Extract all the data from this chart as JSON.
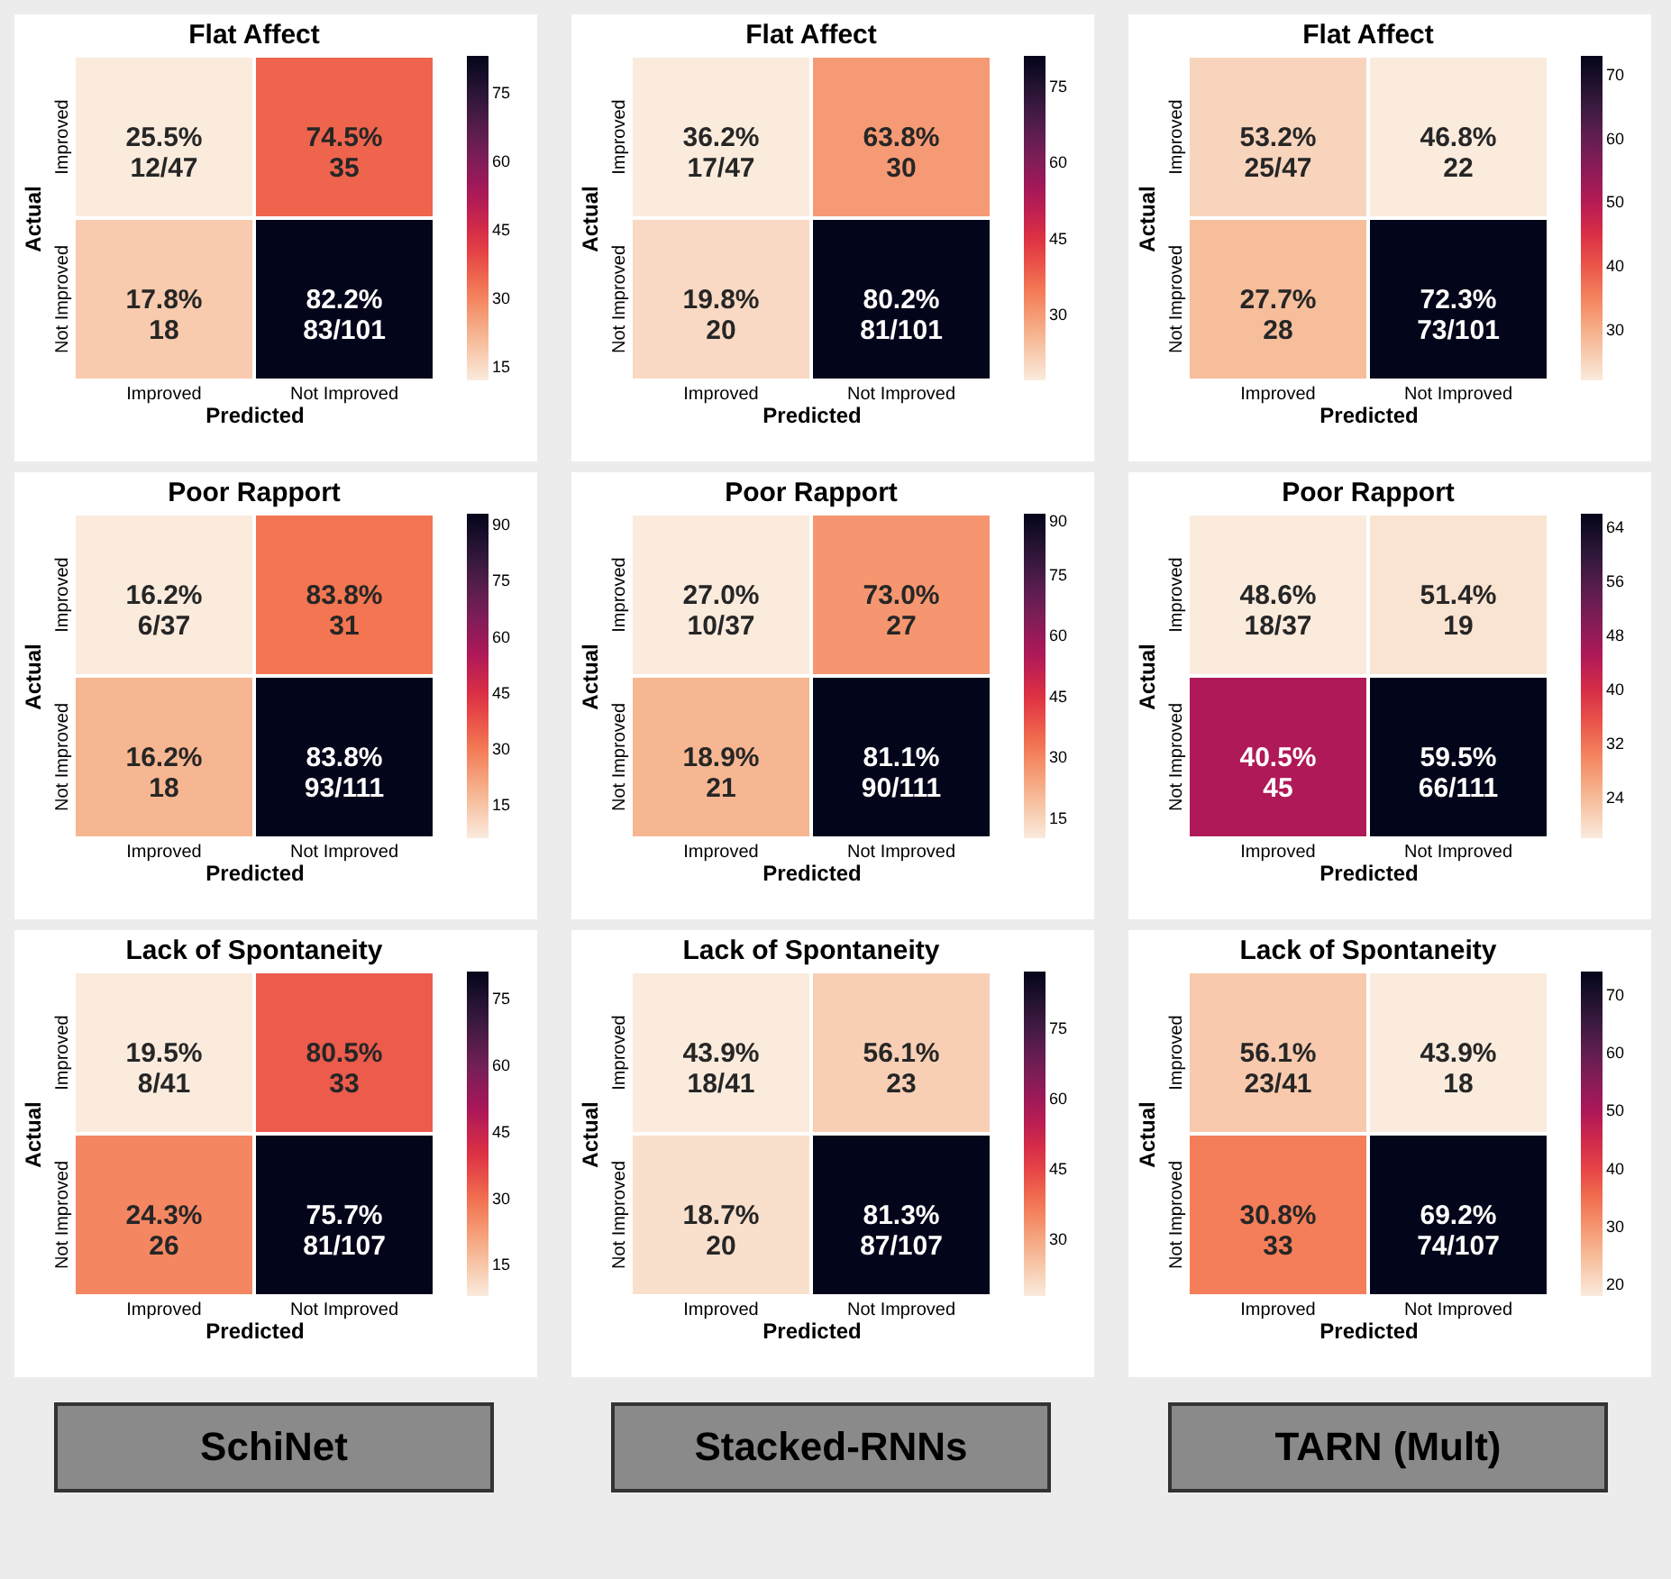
{
  "chart_data": [
    {
      "type": "heatmap",
      "title": "Flat Affect",
      "xlabel": "Predicted",
      "ylabel": "Actual",
      "categories": [
        "Improved",
        "Not Improved"
      ],
      "y_categories": [
        "Improved",
        "Not Improved"
      ],
      "cells": [
        [
          12,
          35
        ],
        [
          18,
          83
        ]
      ],
      "cell_labels": [
        [
          "25.5%\n12/47",
          "74.5%\n35"
        ],
        [
          "17.8%\n18",
          "82.2%\n83/101"
        ]
      ],
      "clim": [
        12,
        83
      ],
      "cticks": [
        15,
        30,
        45,
        60,
        75
      ]
    },
    {
      "type": "heatmap",
      "title": "Flat Affect",
      "xlabel": "Predicted",
      "ylabel": "Actual",
      "categories": [
        "Improved",
        "Not Improved"
      ],
      "y_categories": [
        "Improved",
        "Not Improved"
      ],
      "cells": [
        [
          17,
          30
        ],
        [
          20,
          81
        ]
      ],
      "cell_labels": [
        [
          "36.2%\n17/47",
          "63.8%\n30"
        ],
        [
          "19.8%\n20",
          "80.2%\n81/101"
        ]
      ],
      "clim": [
        17,
        81
      ],
      "cticks": [
        30,
        45,
        60,
        75
      ]
    },
    {
      "type": "heatmap",
      "title": "Flat Affect",
      "xlabel": "Predicted",
      "ylabel": "Actual",
      "categories": [
        "Improved",
        "Not Improved"
      ],
      "y_categories": [
        "Improved",
        "Not Improved"
      ],
      "cells": [
        [
          25,
          22
        ],
        [
          28,
          73
        ]
      ],
      "cell_labels": [
        [
          "53.2%\n25/47",
          "46.8%\n22"
        ],
        [
          "27.7%\n28",
          "72.3%\n73/101"
        ]
      ],
      "clim": [
        22,
        73
      ],
      "cticks": [
        30,
        40,
        50,
        60,
        70
      ]
    },
    {
      "type": "heatmap",
      "title": "Poor Rapport",
      "xlabel": "Predicted",
      "ylabel": "Actual",
      "categories": [
        "Improved",
        "Not Improved"
      ],
      "y_categories": [
        "Improved",
        "Not Improved"
      ],
      "cells": [
        [
          6,
          31
        ],
        [
          18,
          93
        ]
      ],
      "cell_labels": [
        [
          "16.2%\n6/37",
          "83.8%\n31"
        ],
        [
          "16.2%\n18",
          "83.8%\n93/111"
        ]
      ],
      "clim": [
        6,
        93
      ],
      "cticks": [
        15,
        30,
        45,
        60,
        75,
        90
      ]
    },
    {
      "type": "heatmap",
      "title": "Poor Rapport",
      "xlabel": "Predicted",
      "ylabel": "Actual",
      "categories": [
        "Improved",
        "Not Improved"
      ],
      "y_categories": [
        "Improved",
        "Not Improved"
      ],
      "cells": [
        [
          10,
          27
        ],
        [
          21,
          90
        ]
      ],
      "cell_labels": [
        [
          "27.0%\n10/37",
          "73.0%\n27"
        ],
        [
          "18.9%\n21",
          "81.1%\n90/111"
        ]
      ],
      "clim": [
        10,
        90
      ],
      "cticks": [
        15,
        30,
        45,
        60,
        75,
        90
      ]
    },
    {
      "type": "heatmap",
      "title": "Poor Rapport",
      "xlabel": "Predicted",
      "ylabel": "Actual",
      "categories": [
        "Improved",
        "Not Improved"
      ],
      "y_categories": [
        "Improved",
        "Not Improved"
      ],
      "cells": [
        [
          18,
          19
        ],
        [
          45,
          66
        ]
      ],
      "cell_labels": [
        [
          "48.6%\n18/37",
          "51.4%\n19"
        ],
        [
          "40.5%\n45",
          "59.5%\n66/111"
        ]
      ],
      "clim": [
        18,
        66
      ],
      "cticks": [
        24,
        32,
        40,
        48,
        56,
        64
      ]
    },
    {
      "type": "heatmap",
      "title": "Lack of Spontaneity",
      "xlabel": "Predicted",
      "ylabel": "Actual",
      "categories": [
        "Improved",
        "Not Improved"
      ],
      "y_categories": [
        "Improved",
        "Not Improved"
      ],
      "cells": [
        [
          8,
          33
        ],
        [
          26,
          81
        ]
      ],
      "cell_labels": [
        [
          "19.5%\n8/41",
          "80.5%\n33"
        ],
        [
          "24.3%\n26",
          "75.7%\n81/107"
        ]
      ],
      "clim": [
        8,
        81
      ],
      "cticks": [
        15,
        30,
        45,
        60,
        75
      ],
      "annotations": [
        "SchiNet"
      ]
    },
    {
      "type": "heatmap",
      "title": "Lack of Spontaneity",
      "xlabel": "Predicted",
      "ylabel": "Actual",
      "categories": [
        "Improved",
        "Not Improved"
      ],
      "y_categories": [
        "Improved",
        "Not Improved"
      ],
      "cells": [
        [
          18,
          23
        ],
        [
          20,
          87
        ]
      ],
      "cell_labels": [
        [
          "43.9%\n18/41",
          "56.1%\n23"
        ],
        [
          "18.7%\n20",
          "81.3%\n87/107"
        ]
      ],
      "clim": [
        18,
        87
      ],
      "cticks": [
        30,
        45,
        60,
        75
      ],
      "annotations": [
        "Stacked-RNNs"
      ]
    },
    {
      "type": "heatmap",
      "title": "Lack of Spontaneity",
      "xlabel": "Predicted",
      "ylabel": "Actual",
      "categories": [
        "Improved",
        "Not Improved"
      ],
      "y_categories": [
        "Improved",
        "Not Improved"
      ],
      "cells": [
        [
          23,
          18
        ],
        [
          33,
          74
        ]
      ],
      "cell_labels": [
        [
          "56.1%\n23/41",
          "43.9%\n18"
        ],
        [
          "30.8%\n33",
          "69.2%\n74/107"
        ]
      ],
      "clim": [
        18,
        74
      ],
      "cticks": [
        20,
        30,
        40,
        50,
        60,
        70
      ],
      "annotations": [
        "TARN (Mult)"
      ]
    }
  ]
}
